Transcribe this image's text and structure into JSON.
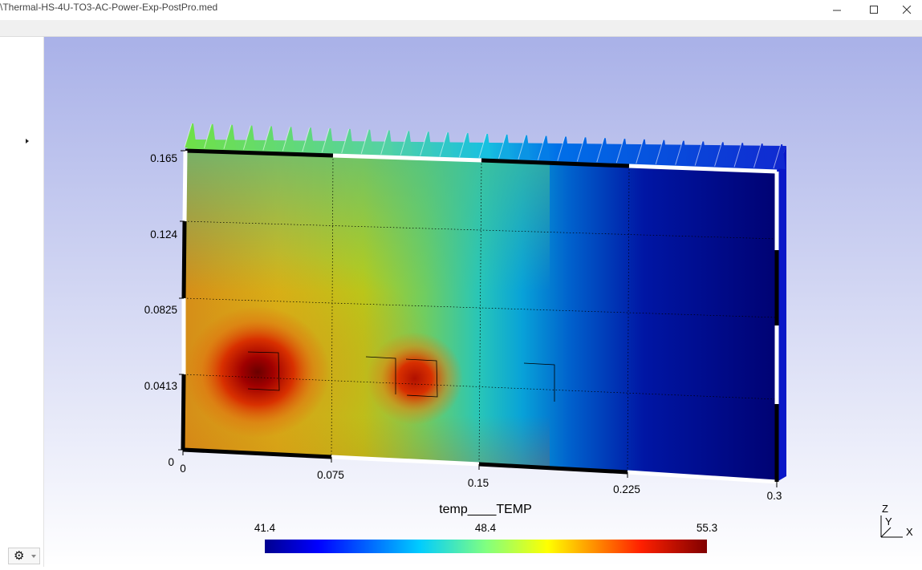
{
  "window": {
    "title": "\\Thermal-HS-4U-TO3-AC-Power-Exp-PostPro.med",
    "minimize_icon": "minimize-icon",
    "maximize_icon": "maximize-icon",
    "close_icon": "close-icon"
  },
  "plot": {
    "y_ticks": [
      "0.165",
      "0.124",
      "0.0825",
      "0.0413",
      "0"
    ],
    "x_ticks": [
      "0",
      "0.075",
      "0.15",
      "0.225",
      "0.3"
    ],
    "colorbar": {
      "title": "temp____TEMP",
      "min_label": "41.4",
      "mid_label": "48.4",
      "max_label": "55.3",
      "min": 41.4,
      "max": 55.3
    },
    "axes_triad": {
      "z": "Z",
      "y": "Y",
      "x": "X"
    },
    "colors": {
      "background_top": "#a9b1e8",
      "background_bottom": "#ffffff",
      "hot": "#7f0000",
      "cold": "#00006e"
    }
  },
  "panel": {
    "expand_icon": "triangle-right-icon",
    "settings_icon": "gear-icon"
  }
}
